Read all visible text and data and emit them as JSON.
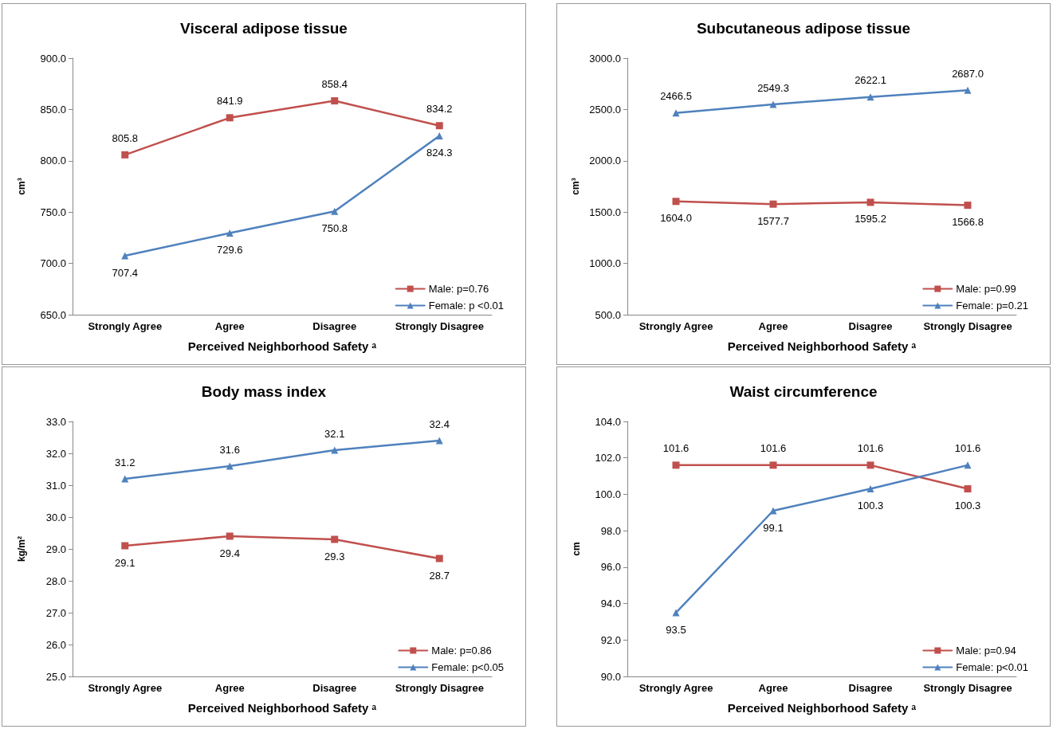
{
  "chart_data": [
    {
      "type": "line",
      "title": "Visceral adipose tissue",
      "xlabel": "Perceived Neighborhood Safety ᵃ",
      "ylabel": "cm³",
      "categories": [
        "Strongly Agree",
        "Agree",
        "Disagree",
        "Strongly Disagree"
      ],
      "series": [
        {
          "name": "Male: p=0.76",
          "color": "#c0504d",
          "marker": "square",
          "values": [
            805.8,
            841.9,
            858.4,
            834.2
          ],
          "value_labels": [
            "805.8",
            "841.9",
            "858.4",
            "834.2"
          ]
        },
        {
          "name": "Female: p <0.01",
          "color": "#4f81bd",
          "marker": "triangle",
          "values": [
            707.4,
            729.6,
            750.8,
            824.3
          ],
          "value_labels": [
            "707.4",
            "729.6",
            "750.8",
            "824.3"
          ]
        }
      ],
      "ylim": [
        650,
        900
      ],
      "yticks": [
        {
          "value": 650,
          "label": "650.0"
        },
        {
          "value": 700,
          "label": "700.0"
        },
        {
          "value": 750,
          "label": "750.0"
        },
        {
          "value": 800,
          "label": "800.0"
        },
        {
          "value": 850,
          "label": "850.0"
        },
        {
          "value": 900,
          "label": "900.0"
        }
      ],
      "legend": "bottom right",
      "line_style": "solid"
    },
    {
      "type": "line",
      "title": "Subcutaneous adipose tissue",
      "xlabel": "Perceived Neighborhood Safety ᵃ",
      "ylabel": "cm³",
      "categories": [
        "Strongly Agree",
        "Agree",
        "Disagree",
        "Strongly Disagree"
      ],
      "series": [
        {
          "name": "Male: p=0.99",
          "color": "#c0504d",
          "marker": "square",
          "values": [
            1604.0,
            1577.7,
            1595.2,
            1566.8
          ],
          "value_labels": [
            "1604.0",
            "1577.7",
            "1595.2",
            "1566.8"
          ]
        },
        {
          "name": "Female: p=0.21",
          "color": "#4f81bd",
          "marker": "triangle",
          "values": [
            2466.5,
            2549.3,
            2622.1,
            2687.0
          ],
          "value_labels": [
            "2466.5",
            "2549.3",
            "2622.1",
            "2687.0"
          ]
        }
      ],
      "ylim": [
        500,
        3000
      ],
      "yticks": [
        {
          "value": 500,
          "label": "500.0"
        },
        {
          "value": 1000,
          "label": "1000.0"
        },
        {
          "value": 1500,
          "label": "1500.0"
        },
        {
          "value": 2000,
          "label": "2000.0"
        },
        {
          "value": 2500,
          "label": "2500.0"
        },
        {
          "value": 3000,
          "label": "3000.0"
        }
      ],
      "legend": "bottom right",
      "line_style": "solid"
    },
    {
      "type": "line",
      "title": "Body mass index",
      "xlabel": "Perceived Neighborhood Safety ᵃ",
      "ylabel": "kg/m²",
      "categories": [
        "Strongly Agree",
        "Agree",
        "Disagree",
        "Strongly Disagree"
      ],
      "series": [
        {
          "name": "Male: p=0.86",
          "color": "#c0504d",
          "marker": "square",
          "values": [
            29.1,
            29.4,
            29.3,
            28.7
          ],
          "value_labels": [
            "29.1",
            "29.4",
            "29.3",
            "28.7"
          ]
        },
        {
          "name": "Female: p<0.05",
          "color": "#4f81bd",
          "marker": "triangle",
          "values": [
            31.2,
            31.6,
            32.1,
            32.4
          ],
          "value_labels": [
            "31.2",
            "31.6",
            "32.1",
            "32.4"
          ]
        }
      ],
      "ylim": [
        25,
        33
      ],
      "yticks": [
        {
          "value": 25,
          "label": "25.0"
        },
        {
          "value": 26,
          "label": "26.0"
        },
        {
          "value": 27,
          "label": "27.0"
        },
        {
          "value": 28,
          "label": "28.0"
        },
        {
          "value": 29,
          "label": "29.0"
        },
        {
          "value": 30,
          "label": "30.0"
        },
        {
          "value": 31,
          "label": "31.0"
        },
        {
          "value": 32,
          "label": "32.0"
        },
        {
          "value": 33,
          "label": "33.0"
        }
      ],
      "legend": "bottom right",
      "line_style": "solid"
    },
    {
      "type": "line",
      "title": "Waist circumference",
      "xlabel": "Perceived Neighborhood Safety ᵃ",
      "ylabel": "cm",
      "categories": [
        "Strongly Agree",
        "Agree",
        "Disagree",
        "Strongly Disagree"
      ],
      "series": [
        {
          "name": "Male: p=0.94",
          "color": "#c0504d",
          "marker": "square",
          "values": [
            101.6,
            101.6,
            101.6,
            100.3
          ],
          "value_labels": [
            "101.6",
            "101.6",
            "101.6",
            "100.3"
          ]
        },
        {
          "name": "Female: p<0.01",
          "color": "#4f81bd",
          "marker": "triangle",
          "values": [
            93.5,
            99.1,
            100.3,
            101.6
          ],
          "value_labels": [
            "93.5",
            "99.1",
            "100.3",
            "101.6"
          ]
        }
      ],
      "ylim": [
        90,
        104
      ],
      "yticks": [
        {
          "value": 90,
          "label": "90.0"
        },
        {
          "value": 92,
          "label": "92.0"
        },
        {
          "value": 94,
          "label": "94.0"
        },
        {
          "value": 96,
          "label": "96.0"
        },
        {
          "value": 98,
          "label": "98.0"
        },
        {
          "value": 100,
          "label": "100.0"
        },
        {
          "value": 102,
          "label": "102.0"
        },
        {
          "value": 104,
          "label": "104.0"
        }
      ],
      "legend": "bottom right",
      "line_style": "solid"
    }
  ]
}
